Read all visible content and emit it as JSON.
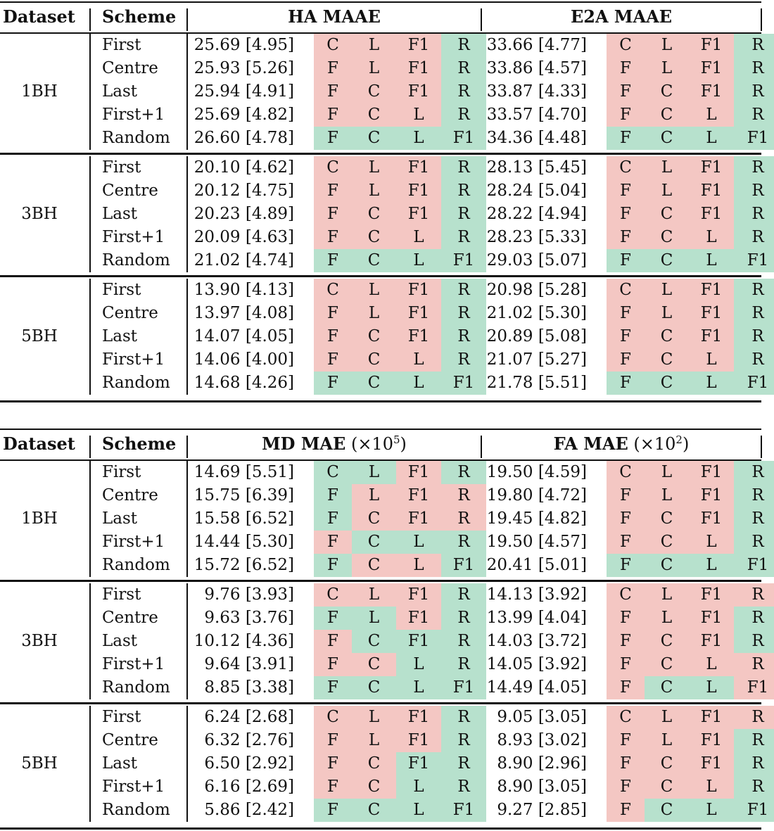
{
  "tables": [
    {
      "headers": {
        "dataset": "Dataset",
        "scheme": "Scheme",
        "metric_a": {
          "main": "HA MAAE",
          "unit": "",
          "exp": ""
        },
        "metric_b": {
          "main": "E2A MAAE",
          "unit": "",
          "exp": ""
        }
      },
      "groups": [
        {
          "name": "1BH",
          "rows": [
            {
              "scheme": "First",
              "a": "25.69 [4.95]",
              "ac": [
                "C",
                "L",
                "F1",
                "R"
              ],
              "ag": "PPPG",
              "b": "33.66 [4.77]",
              "bc": [
                "C",
                "L",
                "F1",
                "R"
              ],
              "bg": "PPPG"
            },
            {
              "scheme": "Centre",
              "a": "25.93 [5.26]",
              "ac": [
                "F",
                "L",
                "F1",
                "R"
              ],
              "ag": "PPPG",
              "b": "33.86 [4.57]",
              "bc": [
                "F",
                "L",
                "F1",
                "R"
              ],
              "bg": "PPPG"
            },
            {
              "scheme": "Last",
              "a": "25.94 [4.91]",
              "ac": [
                "F",
                "C",
                "F1",
                "R"
              ],
              "ag": "PPPG",
              "b": "33.87 [4.33]",
              "bc": [
                "F",
                "C",
                "F1",
                "R"
              ],
              "bg": "PPPG"
            },
            {
              "scheme": "First+1",
              "a": "25.69 [4.82]",
              "ac": [
                "F",
                "C",
                "L",
                "R"
              ],
              "ag": "PPPG",
              "b": "33.57 [4.70]",
              "bc": [
                "F",
                "C",
                "L",
                "R"
              ],
              "bg": "PPPG"
            },
            {
              "scheme": "Random",
              "a": "26.60 [4.78]",
              "ac": [
                "F",
                "C",
                "L",
                "F1"
              ],
              "ag": "GGGG",
              "b": "34.36 [4.48]",
              "bc": [
                "F",
                "C",
                "L",
                "F1"
              ],
              "bg": "GGGG"
            }
          ]
        },
        {
          "name": "3BH",
          "rows": [
            {
              "scheme": "First",
              "a": "20.10 [4.62]",
              "ac": [
                "C",
                "L",
                "F1",
                "R"
              ],
              "ag": "PPPG",
              "b": "28.13 [5.45]",
              "bc": [
                "C",
                "L",
                "F1",
                "R"
              ],
              "bg": "PPPG"
            },
            {
              "scheme": "Centre",
              "a": "20.12 [4.75]",
              "ac": [
                "F",
                "L",
                "F1",
                "R"
              ],
              "ag": "PPPG",
              "b": "28.24 [5.04]",
              "bc": [
                "F",
                "L",
                "F1",
                "R"
              ],
              "bg": "PPPG"
            },
            {
              "scheme": "Last",
              "a": "20.23 [4.89]",
              "ac": [
                "F",
                "C",
                "F1",
                "R"
              ],
              "ag": "PPPG",
              "b": "28.22 [4.94]",
              "bc": [
                "F",
                "C",
                "F1",
                "R"
              ],
              "bg": "PPPG"
            },
            {
              "scheme": "First+1",
              "a": "20.09 [4.63]",
              "ac": [
                "F",
                "C",
                "L",
                "R"
              ],
              "ag": "PPPG",
              "b": "28.23 [5.33]",
              "bc": [
                "F",
                "C",
                "L",
                "R"
              ],
              "bg": "PPPG"
            },
            {
              "scheme": "Random",
              "a": "21.02 [4.74]",
              "ac": [
                "F",
                "C",
                "L",
                "F1"
              ],
              "ag": "GGGG",
              "b": "29.03 [5.07]",
              "bc": [
                "F",
                "C",
                "L",
                "F1"
              ],
              "bg": "GGGG"
            }
          ]
        },
        {
          "name": "5BH",
          "rows": [
            {
              "scheme": "First",
              "a": "13.90 [4.13]",
              "ac": [
                "C",
                "L",
                "F1",
                "R"
              ],
              "ag": "PPPG",
              "b": "20.98 [5.28]",
              "bc": [
                "C",
                "L",
                "F1",
                "R"
              ],
              "bg": "PPPG"
            },
            {
              "scheme": "Centre",
              "a": "13.97 [4.08]",
              "ac": [
                "F",
                "L",
                "F1",
                "R"
              ],
              "ag": "PPPG",
              "b": "21.02 [5.30]",
              "bc": [
                "F",
                "L",
                "F1",
                "R"
              ],
              "bg": "PPPG"
            },
            {
              "scheme": "Last",
              "a": "14.07 [4.05]",
              "ac": [
                "F",
                "C",
                "F1",
                "R"
              ],
              "ag": "PPPG",
              "b": "20.89 [5.08]",
              "bc": [
                "F",
                "C",
                "F1",
                "R"
              ],
              "bg": "PPPG"
            },
            {
              "scheme": "First+1",
              "a": "14.06 [4.00]",
              "ac": [
                "F",
                "C",
                "L",
                "R"
              ],
              "ag": "PPPG",
              "b": "21.07 [5.27]",
              "bc": [
                "F",
                "C",
                "L",
                "R"
              ],
              "bg": "PPPG"
            },
            {
              "scheme": "Random",
              "a": "14.68 [4.26]",
              "ac": [
                "F",
                "C",
                "L",
                "F1"
              ],
              "ag": "GGGG",
              "b": "21.78 [5.51]",
              "bc": [
                "F",
                "C",
                "L",
                "F1"
              ],
              "bg": "GGGG"
            }
          ]
        }
      ]
    },
    {
      "headers": {
        "dataset": "Dataset",
        "scheme": "Scheme",
        "metric_a": {
          "main": "MD MAE",
          "unit": "(×10",
          "exp": "5",
          "close": ")"
        },
        "metric_b": {
          "main": "FA MAE",
          "unit": "(×10",
          "exp": "2",
          "close": ")"
        }
      },
      "groups": [
        {
          "name": "1BH",
          "rows": [
            {
              "scheme": "First",
              "a": "14.69 [5.51]",
              "ac": [
                "C",
                "L",
                "F1",
                "R"
              ],
              "ag": "GGPG",
              "b": "19.50 [4.59]",
              "bc": [
                "C",
                "L",
                "F1",
                "R"
              ],
              "bg": "PPPG"
            },
            {
              "scheme": "Centre",
              "a": "15.75 [6.39]",
              "ac": [
                "F",
                "L",
                "F1",
                "R"
              ],
              "ag": "GPPP",
              "b": "19.80 [4.72]",
              "bc": [
                "F",
                "L",
                "F1",
                "R"
              ],
              "bg": "PPPG"
            },
            {
              "scheme": "Last",
              "a": "15.58 [6.52]",
              "ac": [
                "F",
                "C",
                "F1",
                "R"
              ],
              "ag": "GPPP",
              "b": "19.45 [4.82]",
              "bc": [
                "F",
                "C",
                "F1",
                "R"
              ],
              "bg": "PPPG"
            },
            {
              "scheme": "First+1",
              "a": "14.44 [5.30]",
              "ac": [
                "F",
                "C",
                "L",
                "R"
              ],
              "ag": "PGGG",
              "b": "19.50 [4.57]",
              "bc": [
                "F",
                "C",
                "L",
                "R"
              ],
              "bg": "PPPG"
            },
            {
              "scheme": "Random",
              "a": "15.72 [6.52]",
              "ac": [
                "F",
                "C",
                "L",
                "F1"
              ],
              "ag": "GPPG",
              "b": "20.41 [5.01]",
              "bc": [
                "F",
                "C",
                "L",
                "F1"
              ],
              "bg": "GGGG"
            }
          ]
        },
        {
          "name": "3BH",
          "rows": [
            {
              "scheme": "First",
              "a": "9.76 [3.93]",
              "ac": [
                "C",
                "L",
                "F1",
                "R"
              ],
              "ag": "PPPG",
              "b": "14.13 [3.92]",
              "bc": [
                "C",
                "L",
                "F1",
                "R"
              ],
              "bg": "PPPP"
            },
            {
              "scheme": "Centre",
              "a": "9.63 [3.76]",
              "ac": [
                "F",
                "L",
                "F1",
                "R"
              ],
              "ag": "GGPG",
              "b": "13.99 [4.04]",
              "bc": [
                "F",
                "L",
                "F1",
                "R"
              ],
              "bg": "PPPG"
            },
            {
              "scheme": "Last",
              "a": "10.12 [4.36]",
              "ac": [
                "F",
                "C",
                "F1",
                "R"
              ],
              "ag": "PGGG",
              "b": "14.03 [3.72]",
              "bc": [
                "F",
                "C",
                "F1",
                "R"
              ],
              "bg": "PPPG"
            },
            {
              "scheme": "First+1",
              "a": "9.64 [3.91]",
              "ac": [
                "F",
                "C",
                "L",
                "R"
              ],
              "ag": "PPGG",
              "b": "14.05 [3.92]",
              "bc": [
                "F",
                "C",
                "L",
                "R"
              ],
              "bg": "PPPP"
            },
            {
              "scheme": "Random",
              "a": "8.85 [3.38]",
              "ac": [
                "F",
                "C",
                "L",
                "F1"
              ],
              "ag": "GGGG",
              "b": "14.49 [4.05]",
              "bc": [
                "F",
                "C",
                "L",
                "F1"
              ],
              "bg": "PGGP"
            }
          ]
        },
        {
          "name": "5BH",
          "rows": [
            {
              "scheme": "First",
              "a": "6.24 [2.68]",
              "ac": [
                "C",
                "L",
                "F1",
                "R"
              ],
              "ag": "PPPG",
              "b": "9.05 [3.05]",
              "bc": [
                "C",
                "L",
                "F1",
                "R"
              ],
              "bg": "PPPP"
            },
            {
              "scheme": "Centre",
              "a": "6.32 [2.76]",
              "ac": [
                "F",
                "L",
                "F1",
                "R"
              ],
              "ag": "PPPG",
              "b": "8.93 [3.02]",
              "bc": [
                "F",
                "L",
                "F1",
                "R"
              ],
              "bg": "PPPG"
            },
            {
              "scheme": "Last",
              "a": "6.50 [2.92]",
              "ac": [
                "F",
                "C",
                "F1",
                "R"
              ],
              "ag": "PPGG",
              "b": "8.90 [2.96]",
              "bc": [
                "F",
                "C",
                "F1",
                "R"
              ],
              "bg": "PPPG"
            },
            {
              "scheme": "First+1",
              "a": "6.16 [2.69]",
              "ac": [
                "F",
                "C",
                "L",
                "R"
              ],
              "ag": "PPGG",
              "b": "8.90 [3.05]",
              "bc": [
                "F",
                "C",
                "L",
                "R"
              ],
              "bg": "PPPG"
            },
            {
              "scheme": "Random",
              "a": "5.86 [2.42]",
              "ac": [
                "F",
                "C",
                "L",
                "F1"
              ],
              "ag": "GGGG",
              "b": "9.27 [2.85]",
              "bc": [
                "F",
                "C",
                "L",
                "F1"
              ],
              "bg": "PGGG"
            }
          ]
        }
      ]
    }
  ],
  "colors": {
    "worse": "#f4c7c3",
    "better": "#b7e1cd"
  }
}
